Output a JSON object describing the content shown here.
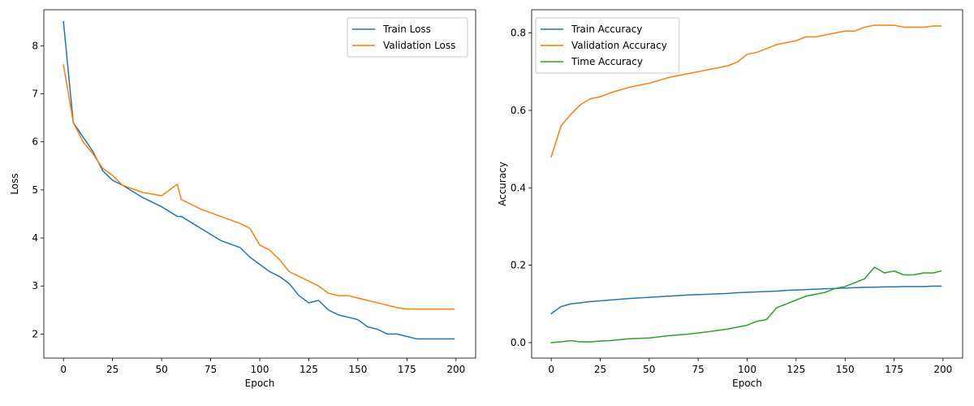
{
  "chart_data": [
    {
      "type": "line",
      "xlabel": "Epoch",
      "ylabel": "Loss",
      "xlim": [
        -10,
        210
      ],
      "ylim": [
        1.5,
        8.75
      ],
      "xticks": [
        0,
        25,
        50,
        75,
        100,
        125,
        150,
        175,
        200
      ],
      "yticks": [
        2,
        3,
        4,
        5,
        6,
        7,
        8
      ],
      "legend": "top-right",
      "grid": false,
      "x": [
        0,
        5,
        10,
        15,
        20,
        25,
        30,
        40,
        50,
        58,
        60,
        70,
        80,
        90,
        95,
        100,
        105,
        110,
        115,
        120,
        125,
        130,
        135,
        140,
        145,
        150,
        155,
        160,
        165,
        170,
        175,
        180,
        185,
        190,
        195,
        199
      ],
      "series": [
        {
          "name": "Train Loss",
          "color": "#1f77b4",
          "values": [
            8.5,
            6.4,
            6.1,
            5.8,
            5.4,
            5.2,
            5.1,
            4.85,
            4.65,
            4.45,
            4.45,
            4.2,
            3.95,
            3.8,
            3.6,
            3.45,
            3.3,
            3.2,
            3.05,
            2.8,
            2.65,
            2.7,
            2.5,
            2.4,
            2.35,
            2.3,
            2.15,
            2.1,
            2.0,
            2.0,
            1.95,
            1.9,
            1.9,
            1.9,
            1.9,
            1.9
          ]
        },
        {
          "name": "Validation Loss",
          "color": "#ff7f0e",
          "values": [
            7.6,
            6.4,
            6.0,
            5.75,
            5.45,
            5.3,
            5.1,
            4.95,
            4.88,
            5.12,
            4.8,
            4.6,
            4.45,
            4.3,
            4.2,
            3.85,
            3.75,
            3.55,
            3.3,
            3.2,
            3.1,
            3.0,
            2.85,
            2.8,
            2.8,
            2.75,
            2.7,
            2.65,
            2.6,
            2.55,
            2.52,
            2.52,
            2.52,
            2.52,
            2.52,
            2.52
          ]
        }
      ]
    },
    {
      "type": "line",
      "xlabel": "Epoch",
      "ylabel": "Accuracy",
      "xlim": [
        -10,
        210
      ],
      "ylim": [
        -0.04,
        0.86
      ],
      "xticks": [
        0,
        25,
        50,
        75,
        100,
        125,
        150,
        175,
        200
      ],
      "yticks": [
        0.0,
        0.2,
        0.4,
        0.6,
        0.8
      ],
      "legend": "top-left",
      "grid": false,
      "x": [
        0,
        5,
        10,
        15,
        20,
        25,
        30,
        40,
        50,
        60,
        70,
        80,
        90,
        95,
        100,
        105,
        110,
        115,
        120,
        125,
        130,
        135,
        140,
        145,
        150,
        155,
        160,
        165,
        170,
        175,
        180,
        185,
        190,
        195,
        199
      ],
      "series": [
        {
          "name": "Train Accuracy",
          "color": "#1f77b4",
          "values": [
            0.075,
            0.093,
            0.1,
            0.103,
            0.106,
            0.108,
            0.11,
            0.114,
            0.117,
            0.12,
            0.123,
            0.125,
            0.127,
            0.129,
            0.13,
            0.131,
            0.132,
            0.133,
            0.135,
            0.136,
            0.137,
            0.138,
            0.139,
            0.14,
            0.141,
            0.142,
            0.143,
            0.143,
            0.144,
            0.144,
            0.145,
            0.145,
            0.145,
            0.146,
            0.146
          ]
        },
        {
          "name": "Validation Accuracy",
          "color": "#ff7f0e",
          "values": [
            0.48,
            0.56,
            0.59,
            0.615,
            0.63,
            0.635,
            0.645,
            0.66,
            0.67,
            0.685,
            0.695,
            0.705,
            0.715,
            0.725,
            0.745,
            0.75,
            0.76,
            0.77,
            0.775,
            0.78,
            0.79,
            0.79,
            0.795,
            0.8,
            0.805,
            0.805,
            0.815,
            0.82,
            0.82,
            0.82,
            0.815,
            0.815,
            0.815,
            0.818,
            0.818
          ]
        },
        {
          "name": "Time Accuracy",
          "color": "#2ca02c",
          "values": [
            0.0,
            0.002,
            0.005,
            0.002,
            0.002,
            0.004,
            0.005,
            0.01,
            0.012,
            0.018,
            0.022,
            0.028,
            0.035,
            0.04,
            0.045,
            0.055,
            0.06,
            0.09,
            0.1,
            0.11,
            0.12,
            0.125,
            0.13,
            0.14,
            0.145,
            0.155,
            0.165,
            0.195,
            0.18,
            0.185,
            0.175,
            0.175,
            0.18,
            0.18,
            0.185
          ]
        }
      ]
    }
  ]
}
